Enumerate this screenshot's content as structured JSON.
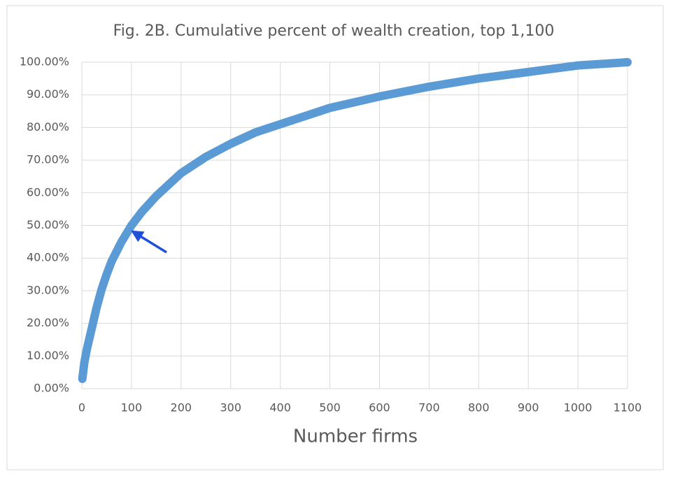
{
  "chart_data": {
    "type": "line",
    "title": "Fig. 2B. Cumulative percent of wealth creation, top 1,100",
    "x_label": "Number firms",
    "x": [
      1,
      5,
      10,
      20,
      30,
      40,
      50,
      60,
      70,
      80,
      100,
      120,
      150,
      200,
      250,
      300,
      350,
      400,
      450,
      500,
      600,
      700,
      800,
      900,
      1000,
      1100
    ],
    "series": [
      {
        "name": "Cumulative percent",
        "color": "#5b9bd5",
        "values": [
          3,
          8,
          12,
          18.5,
          25,
          30.5,
          35,
          39,
          42,
          45,
          50,
          54,
          59,
          66,
          71,
          75,
          78.5,
          81,
          83.5,
          86,
          89.5,
          92.5,
          95,
          97,
          99,
          100
        ]
      }
    ],
    "xlim": [
      0,
      1100
    ],
    "xticks": [
      0,
      100,
      200,
      300,
      400,
      500,
      600,
      700,
      800,
      900,
      1000,
      1100
    ],
    "ylim": [
      0,
      100
    ],
    "yticks": [
      {
        "value": 0,
        "label": "0.00%"
      },
      {
        "value": 10,
        "label": "10.00%"
      },
      {
        "value": 20,
        "label": "20.00%"
      },
      {
        "value": 30,
        "label": "30.00%"
      },
      {
        "value": 40,
        "label": "40.00%"
      },
      {
        "value": 50,
        "label": "50.00%"
      },
      {
        "value": 60,
        "label": "60.00%"
      },
      {
        "value": 70,
        "label": "70.00%"
      },
      {
        "value": 80,
        "label": "80.00%"
      },
      {
        "value": 90,
        "label": "90.00%"
      },
      {
        "value": 100,
        "label": "100.00%"
      }
    ],
    "grid": true
  }
}
